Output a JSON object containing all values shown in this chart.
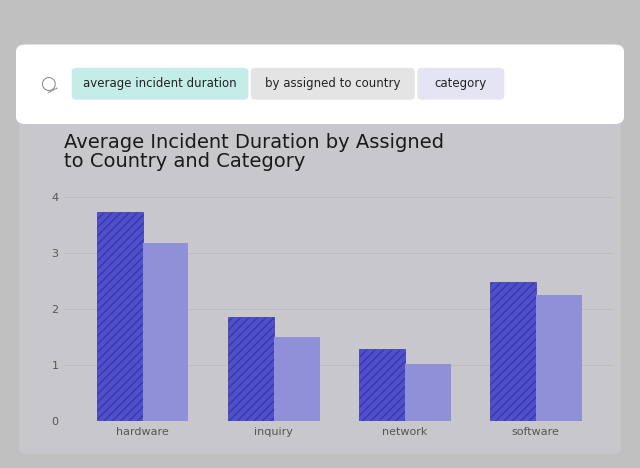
{
  "title_line1": "Average Incident Duration by Assigned",
  "title_line2": "to Country and Category",
  "categories": [
    "hardware",
    "inquiry",
    "network",
    "software"
  ],
  "bar1_values": [
    3.72,
    1.85,
    1.28,
    2.48
  ],
  "bar2_values": [
    3.18,
    1.5,
    1.02,
    2.25
  ],
  "bar1_color": "#5050cc",
  "bar2_color": "#9090d8",
  "outer_bg": "#c0c0c0",
  "inner_bg": "#c8c8cc",
  "search_bar_bg": "#ffffff",
  "ylim": [
    0,
    4.5
  ],
  "yticks": [
    0,
    1,
    2,
    3,
    4
  ],
  "title_fontsize": 14,
  "tick_fontsize": 8,
  "bar_width": 0.35,
  "tag1_text": "average incident duration",
  "tag1_color": "#c5ede8",
  "tag2_text": "by assigned to country",
  "tag2_color": "#e4e4e4",
  "tag3_text": "category",
  "tag3_color": "#e4e4f4",
  "hatch_color": "#3838aa",
  "hatch_pattern": "////"
}
